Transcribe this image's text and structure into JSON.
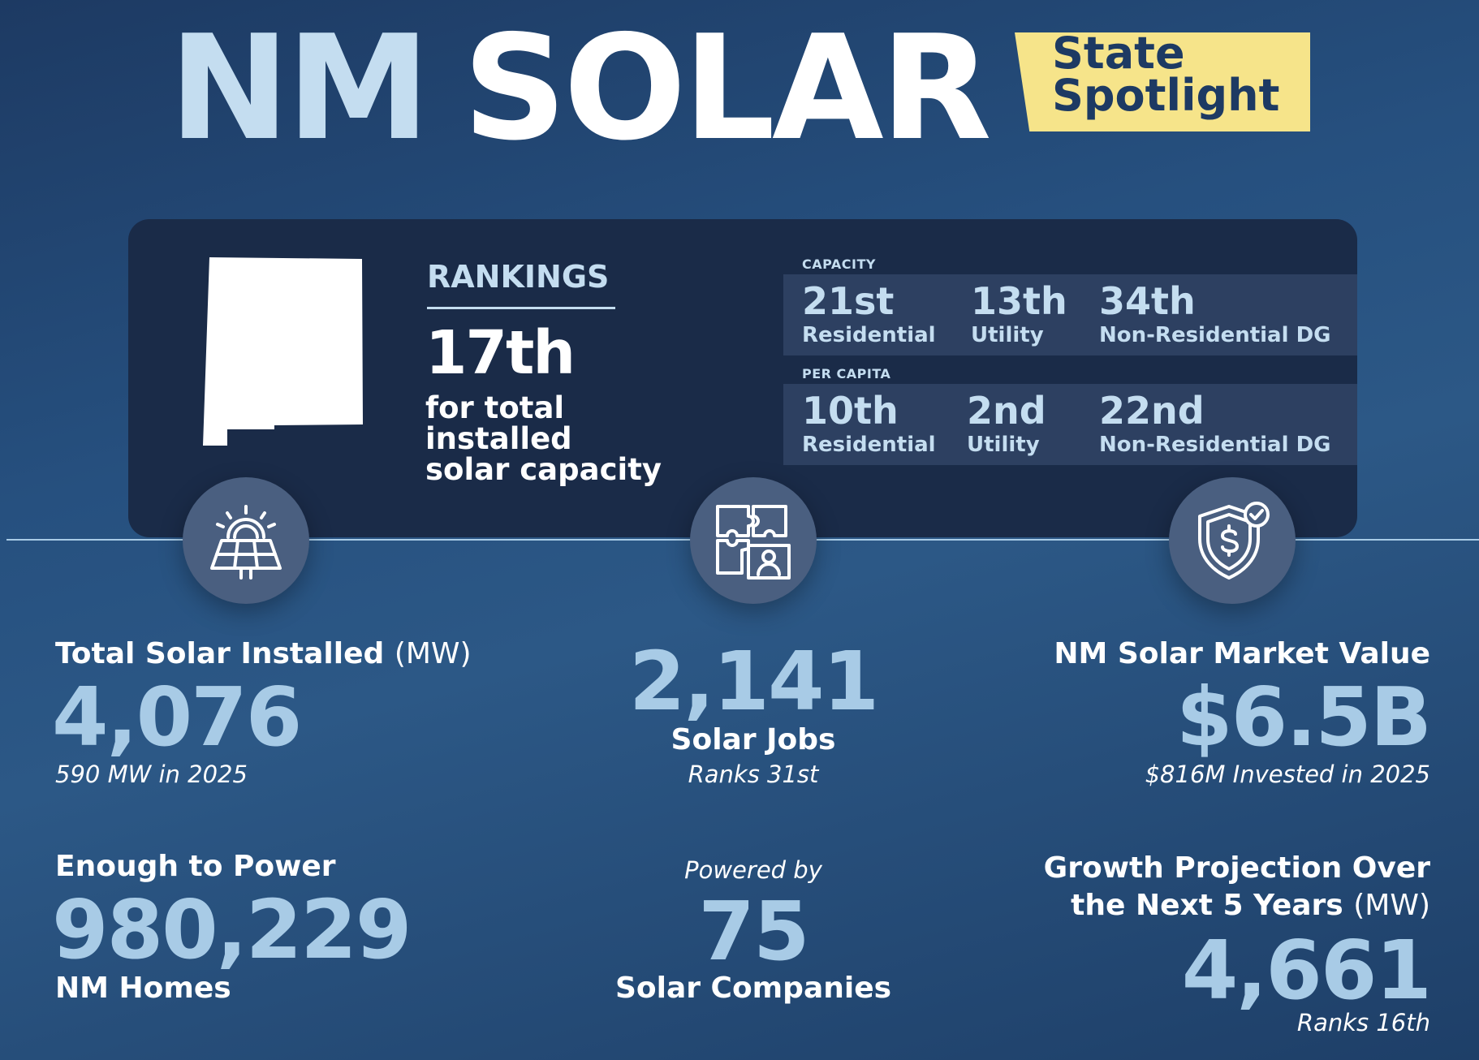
{
  "header": {
    "title_nm": "NM",
    "title_solar": "SOLAR",
    "badge_line1": "State",
    "badge_line2": "Spotlight"
  },
  "rankings": {
    "heading": "RANKINGS",
    "overall_rank": "17th",
    "overall_desc_line1": "for total installed",
    "overall_desc_line2": "solar capacity",
    "capacity": {
      "label": "CAPACITY",
      "items": [
        {
          "rank": "21st",
          "label": "Residential"
        },
        {
          "rank": "13th",
          "label": "Utility"
        },
        {
          "rank": "34th",
          "label": "Non-Residential DG"
        }
      ]
    },
    "per_capita": {
      "label": "PER CAPITA",
      "items": [
        {
          "rank": "10th",
          "label": "Residential"
        },
        {
          "rank": "2nd",
          "label": "Utility"
        },
        {
          "rank": "22nd",
          "label": "Non-Residential DG"
        }
      ]
    }
  },
  "icons": {
    "left": "solar-panel-sun-icon",
    "middle": "puzzle-people-icon",
    "right": "shield-dollar-icon"
  },
  "stats": {
    "installed": {
      "label": "Total Solar Installed",
      "unit": "(MW)",
      "value": "4,076",
      "sub": "590 MW in 2025"
    },
    "jobs": {
      "value": "2,141",
      "label": "Solar Jobs",
      "sub": "Ranks 31st"
    },
    "market": {
      "label": "NM Solar Market Value",
      "value": "$6.5B",
      "sub": "$816M Invested in 2025"
    },
    "homes": {
      "label": "Enough to Power",
      "value": "980,229",
      "sub": "NM Homes"
    },
    "companies": {
      "pre": "Powered by",
      "value": "75",
      "label": "Solar Companies"
    },
    "growth": {
      "label_line1": "Growth Projection Over",
      "label_line2": "the Next 5 Years",
      "unit": "(MW)",
      "value": "4,661",
      "sub": "Ranks 16th"
    }
  },
  "colors": {
    "background": "#26507f",
    "panel": "#1a2b48",
    "accent_blue": "#a8cbe6",
    "badge_yellow": "#f6e48a"
  }
}
